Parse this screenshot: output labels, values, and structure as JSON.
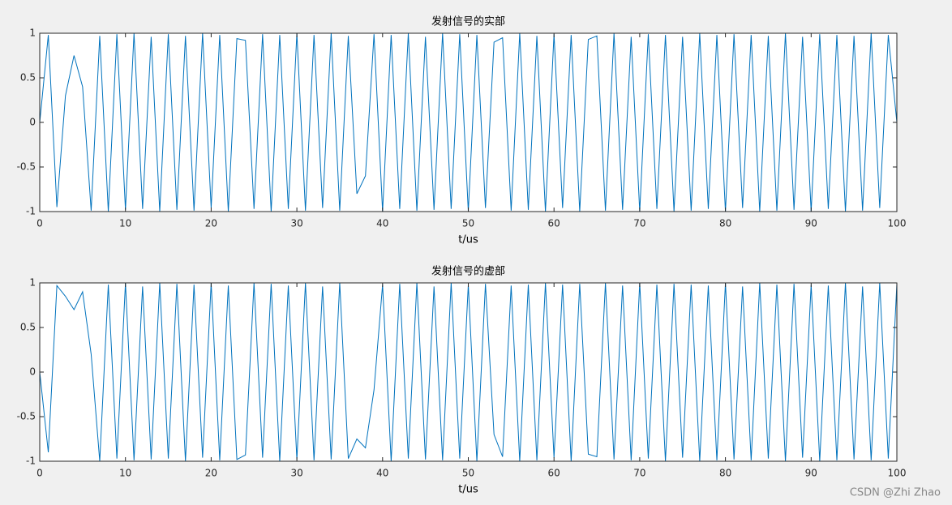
{
  "chart_data": [
    {
      "type": "line",
      "title": "发射信号的实部",
      "xlabel": "t/us",
      "color": "#0072bd",
      "xlim": [
        0,
        100
      ],
      "xticks": [
        0,
        10,
        20,
        30,
        40,
        50,
        60,
        70,
        80,
        90,
        100
      ],
      "ylim": [
        -1,
        1
      ],
      "yticks": [
        -1,
        -0.5,
        0,
        0.5,
        1
      ],
      "x": [
        0,
        1,
        2,
        3,
        4,
        5,
        6,
        7,
        8,
        9,
        10,
        11,
        12,
        13,
        14,
        15,
        16,
        17,
        18,
        19,
        20,
        21,
        22,
        23,
        24,
        25,
        26,
        27,
        28,
        29,
        30,
        31,
        32,
        33,
        34,
        35,
        36,
        37,
        38,
        39,
        40,
        41,
        42,
        43,
        44,
        45,
        46,
        47,
        48,
        49,
        50,
        51,
        52,
        53,
        54,
        55,
        56,
        57,
        58,
        59,
        60,
        61,
        62,
        63,
        64,
        65,
        66,
        67,
        68,
        69,
        70,
        71,
        72,
        73,
        74,
        75,
        76,
        77,
        78,
        79,
        80,
        81,
        82,
        83,
        84,
        85,
        86,
        87,
        88,
        89,
        90,
        91,
        92,
        93,
        94,
        95,
        96,
        97,
        98,
        99,
        100
      ],
      "values": [
        0,
        0.98,
        -0.95,
        0.3,
        0.75,
        0.4,
        -0.99,
        0.97,
        -1,
        0.99,
        -0.98,
        1,
        -0.97,
        0.96,
        -1,
        0.99,
        -0.98,
        0.97,
        -0.99,
        1,
        -0.96,
        0.98,
        -1,
        0.94,
        0.92,
        -0.97,
        0.99,
        -1,
        0.98,
        -0.97,
        1,
        -0.99,
        0.98,
        -0.96,
        1,
        -0.99,
        0.97,
        -0.8,
        -0.6,
        0.99,
        -1,
        0.98,
        -0.97,
        1,
        -0.99,
        0.96,
        -0.98,
        1,
        -0.97,
        0.99,
        -1,
        0.98,
        -0.96,
        0.9,
        0.95,
        -0.99,
        1,
        -0.98,
        0.97,
        -1,
        0.99,
        -0.96,
        0.98,
        -1,
        0.93,
        0.97,
        -0.99,
        1,
        -0.98,
        0.96,
        -1,
        0.99,
        -0.97,
        0.98,
        -1,
        0.96,
        -0.99,
        1,
        -0.97,
        0.98,
        -1,
        0.99,
        -0.96,
        0.98,
        -1,
        0.97,
        -0.99,
        1,
        -0.98,
        0.96,
        -1,
        0.99,
        -0.97,
        0.98,
        -1,
        0.97,
        -0.99,
        1,
        -0.96,
        0.98,
        0
      ]
    },
    {
      "type": "line",
      "title": "发射信号的虚部",
      "xlabel": "t/us",
      "color": "#0072bd",
      "xlim": [
        0,
        100
      ],
      "xticks": [
        0,
        10,
        20,
        30,
        40,
        50,
        60,
        70,
        80,
        90,
        100
      ],
      "ylim": [
        -1,
        1
      ],
      "yticks": [
        -1,
        -0.5,
        0,
        0.5,
        1
      ],
      "x": [
        0,
        1,
        2,
        3,
        4,
        5,
        6,
        7,
        8,
        9,
        10,
        11,
        12,
        13,
        14,
        15,
        16,
        17,
        18,
        19,
        20,
        21,
        22,
        23,
        24,
        25,
        26,
        27,
        28,
        29,
        30,
        31,
        32,
        33,
        34,
        35,
        36,
        37,
        38,
        39,
        40,
        41,
        42,
        43,
        44,
        45,
        46,
        47,
        48,
        49,
        50,
        51,
        52,
        53,
        54,
        55,
        56,
        57,
        58,
        59,
        60,
        61,
        62,
        63,
        64,
        65,
        66,
        67,
        68,
        69,
        70,
        71,
        72,
        73,
        74,
        75,
        76,
        77,
        78,
        79,
        80,
        81,
        82,
        83,
        84,
        85,
        86,
        87,
        88,
        89,
        90,
        91,
        92,
        93,
        94,
        95,
        96,
        97,
        98,
        99,
        100
      ],
      "values": [
        0,
        -0.9,
        0.97,
        0.85,
        0.7,
        0.9,
        0.2,
        -1,
        0.98,
        -0.97,
        1,
        -0.99,
        0.96,
        -0.98,
        1,
        -0.97,
        0.99,
        -1,
        0.98,
        -0.96,
        1,
        -0.99,
        0.97,
        -0.98,
        -0.93,
        1,
        -0.96,
        0.99,
        -1,
        0.97,
        -0.98,
        1,
        -0.99,
        0.96,
        -0.98,
        1,
        -0.97,
        -0.75,
        -0.85,
        -0.2,
        0.98,
        -1,
        0.99,
        -0.97,
        1,
        -0.98,
        0.96,
        -0.99,
        1,
        -0.97,
        0.98,
        -1,
        0.99,
        -0.7,
        -0.95,
        0.97,
        -1,
        0.98,
        -0.99,
        1,
        -0.96,
        0.98,
        -1,
        0.99,
        -0.92,
        -0.95,
        1,
        -0.98,
        0.97,
        -0.99,
        1,
        -0.97,
        0.98,
        -1,
        0.99,
        -0.96,
        0.98,
        -1,
        0.97,
        -0.99,
        1,
        -0.98,
        0.96,
        -0.99,
        1,
        -0.97,
        0.98,
        -1,
        0.99,
        -0.96,
        0.98,
        -1,
        0.97,
        -0.99,
        1,
        -0.98,
        0.96,
        -0.99,
        1,
        -0.97,
        0.99
      ]
    }
  ],
  "watermark": "CSDN @Zhi Zhao"
}
